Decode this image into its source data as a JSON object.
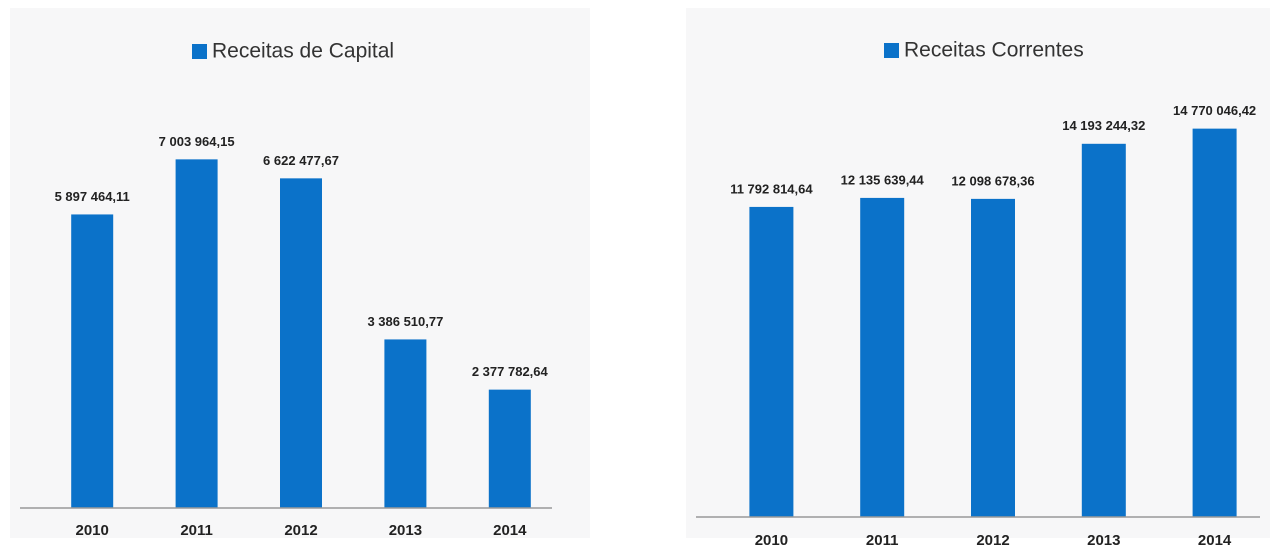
{
  "chart_data": [
    {
      "type": "bar",
      "categories": [
        "2010",
        "2011",
        "2012",
        "2013",
        "2014"
      ],
      "series": [
        {
          "name": "Receitas de Capital",
          "color": "#0b72c9",
          "values": [
            5897464.11,
            7003964.15,
            6622477.67,
            3386510.77,
            2377782.64
          ],
          "value_labels": [
            "5 897 464,11",
            "7 003 964,15",
            "6 622 477,67",
            "3 386 510,77",
            "2 377 782,64"
          ]
        }
      ],
      "ylim": [
        0,
        9000000
      ]
    },
    {
      "type": "bar",
      "categories": [
        "2010",
        "2011",
        "2012",
        "2013",
        "2014"
      ],
      "series": [
        {
          "name": "Receitas Correntes",
          "color": "#0b72c9",
          "values": [
            11792814.64,
            12135639.44,
            12098678.36,
            14193244.32,
            14770046.42
          ],
          "value_labels": [
            "11 792 814,64",
            "12 135 639,44",
            "12 098 678,36",
            "14 193 244,32",
            "14 770 046,42"
          ]
        }
      ],
      "ylim": [
        0,
        17000000
      ]
    }
  ]
}
